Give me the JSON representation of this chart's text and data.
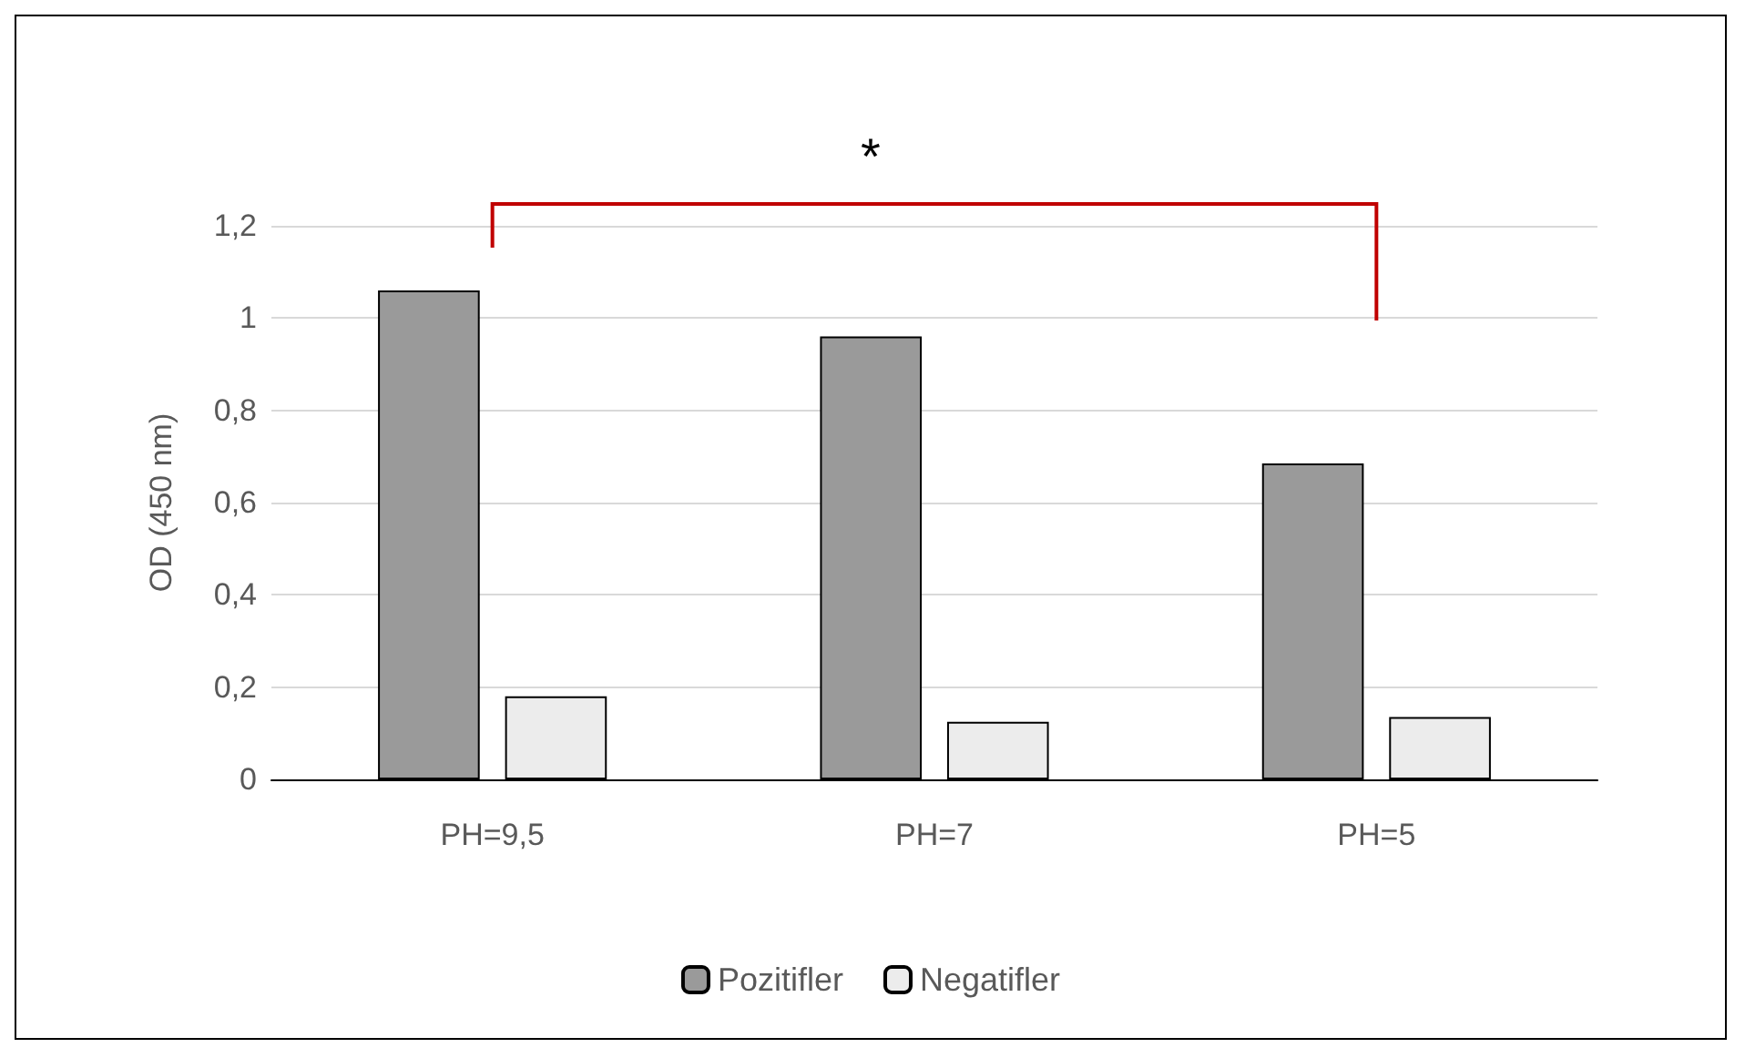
{
  "chart_data": {
    "type": "bar",
    "ylabel": "OD (450 nm)",
    "categories": [
      "PH=9,5",
      "PH=7",
      "PH=5"
    ],
    "series": [
      {
        "name": "Pozitifler",
        "color": "#9a9a9a",
        "values": [
          1.06,
          0.96,
          0.685
        ]
      },
      {
        "name": "Negatifler",
        "color": "#ececec",
        "values": [
          0.18,
          0.125,
          0.135
        ]
      }
    ],
    "ylim": [
      0,
      1.2
    ],
    "yticks": [
      0,
      {
        "value": 0.2,
        "label": "0,2"
      },
      {
        "value": 0.4,
        "label": "0,4"
      },
      {
        "value": 0.6,
        "label": "0,6"
      },
      {
        "value": 0.8,
        "label": "0,8"
      },
      1,
      {
        "value": 1.2,
        "label": "1,2"
      }
    ],
    "grid": "y",
    "legend": "bottom",
    "annotations": [
      "*"
    ]
  }
}
